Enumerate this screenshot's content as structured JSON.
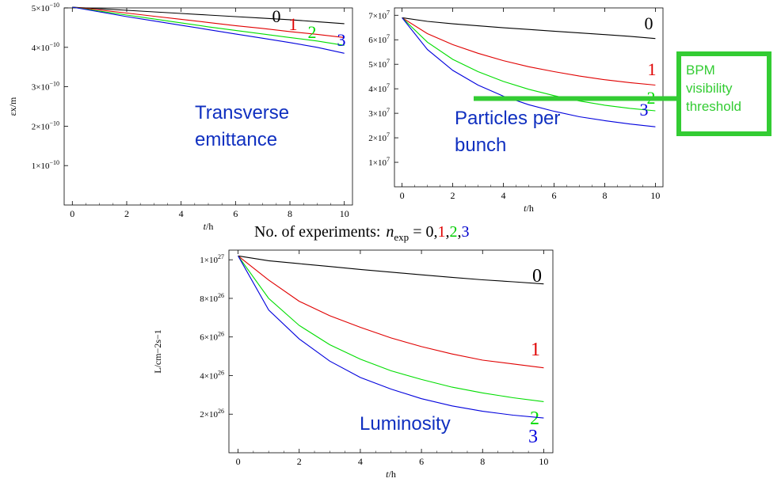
{
  "colors": {
    "series": [
      "#000000",
      "#e00000",
      "#00dd00",
      "#0000dd"
    ],
    "overlay_text": "#1030c0",
    "threshold": "#33cc33"
  },
  "experiments_caption": {
    "prefix": "No. of experiments: ",
    "n_main": "n",
    "n_sub": "exp",
    "eq": " = ",
    "values": [
      "0",
      "1",
      "2",
      "3"
    ],
    "sep": ","
  },
  "chart_data": [
    {
      "type": "line",
      "overlay_label": [
        "Transverse",
        "emittance"
      ],
      "xlabel": "t/h",
      "ylabel": "εx/m",
      "xlim": [
        -0.3,
        10.3
      ],
      "ylim": [
        0,
        5e-10
      ],
      "xticks": [
        0,
        2,
        4,
        6,
        8,
        10
      ],
      "yticks": [
        {
          "value": 1e-10,
          "mant": "1×10",
          "exp": "−10"
        },
        {
          "value": 2e-10,
          "mant": "2×10",
          "exp": "−10"
        },
        {
          "value": 3e-10,
          "mant": "3×10",
          "exp": "−10"
        },
        {
          "value": 4e-10,
          "mant": "4×10",
          "exp": "−10"
        },
        {
          "value": 5e-10,
          "mant": "5×10",
          "exp": "−10"
        }
      ],
      "series": [
        {
          "label": "0",
          "x": [
            0,
            1,
            2,
            3,
            4,
            5,
            6,
            7,
            8,
            9,
            10
          ],
          "y": [
            5.02e-10,
            4.98e-10,
            4.94e-10,
            4.9e-10,
            4.86e-10,
            4.82e-10,
            4.78e-10,
            4.74e-10,
            4.7e-10,
            4.65e-10,
            4.6e-10
          ]
        },
        {
          "label": "1",
          "x": [
            0,
            1,
            2,
            3,
            4,
            5,
            6,
            7,
            8,
            9,
            10
          ],
          "y": [
            5.02e-10,
            4.95e-10,
            4.87e-10,
            4.79e-10,
            4.71e-10,
            4.63e-10,
            4.55e-10,
            4.48e-10,
            4.4e-10,
            4.33e-10,
            4.25e-10
          ]
        },
        {
          "label": "2",
          "x": [
            0,
            1,
            2,
            3,
            4,
            5,
            6,
            7,
            8,
            9,
            10
          ],
          "y": [
            5.02e-10,
            4.92e-10,
            4.82e-10,
            4.72e-10,
            4.62e-10,
            4.52e-10,
            4.43e-10,
            4.34e-10,
            4.25e-10,
            4.16e-10,
            4.05e-10
          ]
        },
        {
          "label": "3",
          "x": [
            0,
            1,
            2,
            3,
            4,
            5,
            6,
            7,
            8,
            9,
            10
          ],
          "y": [
            5.02e-10,
            4.9e-10,
            4.78e-10,
            4.67e-10,
            4.56e-10,
            4.45e-10,
            4.34e-10,
            4.23e-10,
            4.12e-10,
            4e-10,
            3.85e-10
          ]
        }
      ]
    },
    {
      "type": "line",
      "overlay_label": [
        "Particles per",
        "bunch"
      ],
      "xlabel": "t/h",
      "ylabel": "",
      "xlim": [
        -0.3,
        10.3
      ],
      "ylim": [
        0,
        73000000.0
      ],
      "xticks": [
        0,
        2,
        4,
        6,
        8,
        10
      ],
      "yticks": [
        {
          "value": 10000000.0,
          "mant": "1×10",
          "exp": "7"
        },
        {
          "value": 20000000.0,
          "mant": "2×10",
          "exp": "7"
        },
        {
          "value": 30000000.0,
          "mant": "3×10",
          "exp": "7"
        },
        {
          "value": 40000000.0,
          "mant": "4×10",
          "exp": "7"
        },
        {
          "value": 50000000.0,
          "mant": "5×10",
          "exp": "7"
        },
        {
          "value": 60000000.0,
          "mant": "6×10",
          "exp": "7"
        },
        {
          "value": 70000000.0,
          "mant": "7×10",
          "exp": "7"
        }
      ],
      "threshold_label": [
        "BPM",
        "visibility",
        "threshold"
      ],
      "threshold_value": 36000000.0,
      "series": [
        {
          "label": "0",
          "x": [
            0,
            1,
            2,
            3,
            4,
            5,
            6,
            7,
            8,
            9,
            10
          ],
          "y": [
            69000000.0,
            67500000.0,
            66500000.0,
            65700000.0,
            64900000.0,
            64200000.0,
            63500000.0,
            62800000.0,
            62100000.0,
            61400000.0,
            60500000.0
          ]
        },
        {
          "label": "1",
          "x": [
            0,
            1,
            2,
            3,
            4,
            5,
            6,
            7,
            8,
            9,
            10
          ],
          "y": [
            69000000.0,
            62500000.0,
            58000000.0,
            54500000.0,
            51500000.0,
            49000000.0,
            47000000.0,
            45200000.0,
            43700000.0,
            42500000.0,
            41500000.0
          ]
        },
        {
          "label": "2",
          "x": [
            0,
            1,
            2,
            3,
            4,
            5,
            6,
            7,
            8,
            9,
            10
          ],
          "y": [
            69000000.0,
            59000000.0,
            52000000.0,
            47000000.0,
            43000000.0,
            39800000.0,
            37200000.0,
            35000000.0,
            33300000.0,
            32000000.0,
            31000000.0
          ]
        },
        {
          "label": "3",
          "x": [
            0,
            1,
            2,
            3,
            4,
            5,
            6,
            7,
            8,
            9,
            10
          ],
          "y": [
            69000000.0,
            56000000.0,
            47500000.0,
            41500000.0,
            37000000.0,
            33500000.0,
            30800000.0,
            28600000.0,
            27000000.0,
            25600000.0,
            24500000.0
          ]
        }
      ]
    },
    {
      "type": "line",
      "overlay_label": [
        "Luminosity"
      ],
      "xlabel": "t/h",
      "ylabel": "L/cm−2s−1",
      "xlim": [
        -0.3,
        10.3
      ],
      "ylim": [
        0,
        1.05e+27
      ],
      "xticks": [
        0,
        2,
        4,
        6,
        8,
        10
      ],
      "yticks": [
        {
          "value": 2e+26,
          "mant": "2×10",
          "exp": "26"
        },
        {
          "value": 4e+26,
          "mant": "4×10",
          "exp": "26"
        },
        {
          "value": 6e+26,
          "mant": "6×10",
          "exp": "26"
        },
        {
          "value": 8e+26,
          "mant": "8×10",
          "exp": "26"
        },
        {
          "value": 1e+27,
          "mant": "1×10",
          "exp": "27"
        }
      ],
      "series": [
        {
          "label": "0",
          "x": [
            0,
            1,
            2,
            3,
            4,
            5,
            6,
            7,
            8,
            9,
            10
          ],
          "y": [
            1.02e+27,
            9.95e+26,
            9.8e+26,
            9.65e+26,
            9.5e+26,
            9.36e+26,
            9.22e+26,
            9.09e+26,
            8.96e+26,
            8.86e+26,
            8.75e+26
          ]
        },
        {
          "label": "1",
          "x": [
            0,
            1,
            2,
            3,
            4,
            5,
            6,
            7,
            8,
            9,
            10
          ],
          "y": [
            1.02e+27,
            8.95e+26,
            7.85e+26,
            7.1e+26,
            6.5e+26,
            5.95e+26,
            5.5e+26,
            5.12e+26,
            4.8e+26,
            4.6e+26,
            4.4e+26
          ]
        },
        {
          "label": "2",
          "x": [
            0,
            1,
            2,
            3,
            4,
            5,
            6,
            7,
            8,
            9,
            10
          ],
          "y": [
            1.02e+27,
            8e+26,
            6.6e+26,
            5.6e+26,
            4.85e+26,
            4.25e+26,
            3.8e+26,
            3.4e+26,
            3.1e+26,
            2.85e+26,
            2.65e+26
          ]
        },
        {
          "label": "3",
          "x": [
            0,
            1,
            2,
            3,
            4,
            5,
            6,
            7,
            8,
            9,
            10
          ],
          "y": [
            1.02e+27,
            7.4e+26,
            5.9e+26,
            4.75e+26,
            3.9e+26,
            3.3e+26,
            2.8e+26,
            2.43e+26,
            2.15e+26,
            1.95e+26,
            1.8e+26
          ]
        }
      ]
    }
  ]
}
